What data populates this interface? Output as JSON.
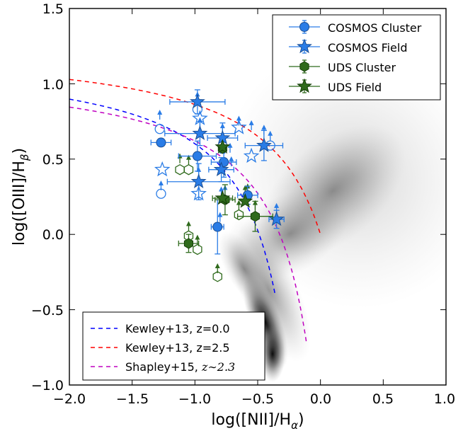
{
  "chart_data": {
    "type": "scatter",
    "xlabel": "log([NII]/H",
    "xlabel_sub": "α",
    "xlabel_close": ")",
    "ylabel": "log([OIII]/H",
    "ylabel_sub": "β",
    "ylabel_close": ")",
    "xlim": [
      -2.0,
      1.0
    ],
    "ylim": [
      -1.0,
      1.5
    ],
    "xticks": [
      -2.0,
      -1.5,
      -1.0,
      -0.5,
      0.0,
      0.5,
      1.0
    ],
    "xtick_labels": [
      "−2.0",
      "−1.5",
      "−1.0",
      "−0.5",
      "0.0",
      "0.5",
      "1.0"
    ],
    "yticks": [
      -1.0,
      -0.5,
      0.0,
      0.5,
      1.0,
      1.5
    ],
    "ytick_labels": [
      "−1.0",
      "−0.5",
      "0.0",
      "0.5",
      "1.0",
      "1.5"
    ],
    "grid": false,
    "colors": {
      "cosmos": "#2a7ce6",
      "cosmos_edge": "#1a4e94",
      "uds": "#2f6a1c",
      "uds_edge": "#143d08",
      "kewley0": "#0000ff",
      "kewley25": "#ff0000",
      "shapley": "#c000c0"
    },
    "series": [
      {
        "name": "COSMOS Cluster",
        "marker": "circle",
        "color": "cosmos",
        "points": [
          {
            "x": -1.27,
            "y": 0.61,
            "xerr": 0.08,
            "yerr": 0.0,
            "filled": true
          },
          {
            "x": -0.98,
            "y": 0.52,
            "xerr": 0.15,
            "yerr": 0.1,
            "filled": true
          },
          {
            "x": -0.82,
            "y": 0.05,
            "xerr": 0.05,
            "yerr": 0.18,
            "filled": true
          },
          {
            "x": -0.77,
            "y": 0.48,
            "xerr": 0.1,
            "yerr": 0.1,
            "filled": true
          },
          {
            "x": -0.58,
            "y": 0.26,
            "xerr": 0.08,
            "yerr": 0.06,
            "filled": true
          },
          {
            "x": -1.28,
            "y": 0.7,
            "xerr": 0.0,
            "yerr": 0.0,
            "filled": false
          },
          {
            "x": -1.27,
            "y": 0.27,
            "xerr": 0.0,
            "yerr": 0.0,
            "filled": false
          },
          {
            "x": -0.4,
            "y": 0.59,
            "xerr": 0.0,
            "yerr": 0.0,
            "filled": false
          },
          {
            "x": -0.98,
            "y": 0.83,
            "xerr": 0.0,
            "yerr": 0.0,
            "filled": false
          }
        ]
      },
      {
        "name": "COSMOS Field",
        "marker": "star",
        "color": "cosmos",
        "points": [
          {
            "x": -0.98,
            "y": 0.88,
            "xerr": 0.22,
            "yerr": 0.08,
            "filled": true
          },
          {
            "x": -0.96,
            "y": 0.67,
            "xerr": 0.28,
            "yerr": 0.08,
            "filled": true
          },
          {
            "x": -0.97,
            "y": 0.35,
            "xerr": 0.25,
            "yerr": 0.12,
            "filled": true
          },
          {
            "x": -0.78,
            "y": 0.64,
            "xerr": 0.12,
            "yerr": 0.1,
            "filled": true
          },
          {
            "x": -0.79,
            "y": 0.43,
            "xerr": 0.1,
            "yerr": 0.08,
            "filled": true
          },
          {
            "x": -0.45,
            "y": 0.59,
            "xerr": 0.15,
            "yerr": 0.1,
            "filled": true
          },
          {
            "x": -0.35,
            "y": 0.1,
            "xerr": 0.06,
            "yerr": 0.06,
            "filled": true
          },
          {
            "x": -0.65,
            "y": 0.71,
            "xerr": 0.0,
            "yerr": 0.0,
            "filled": false
          },
          {
            "x": -0.96,
            "y": 0.77,
            "xerr": 0.0,
            "yerr": 0.0,
            "filled": false
          },
          {
            "x": -1.26,
            "y": 0.43,
            "xerr": 0.0,
            "yerr": 0.0,
            "filled": false
          },
          {
            "x": -0.97,
            "y": 0.27,
            "xerr": 0.0,
            "yerr": 0.0,
            "filled": false
          },
          {
            "x": -0.55,
            "y": 0.52,
            "xerr": 0.0,
            "yerr": 0.0,
            "filled": false
          }
        ]
      },
      {
        "name": "UDS Cluster",
        "marker": "hexagon",
        "color": "uds",
        "points": [
          {
            "x": -1.05,
            "y": -0.06,
            "xerr": 0.08,
            "yerr": 0.06,
            "filled": true
          },
          {
            "x": -0.76,
            "y": 0.23,
            "xerr": 0.08,
            "yerr": 0.1,
            "filled": true
          },
          {
            "x": -0.52,
            "y": 0.12,
            "xerr": 0.14,
            "yerr": 0.1,
            "filled": true
          },
          {
            "x": -0.78,
            "y": 0.57,
            "xerr": 0.0,
            "yerr": 0.0,
            "filled": true
          },
          {
            "x": -1.05,
            "y": -0.01,
            "xerr": 0.0,
            "yerr": 0.0,
            "filled": false
          },
          {
            "x": -0.98,
            "y": -0.1,
            "xerr": 0.0,
            "yerr": 0.0,
            "filled": false
          },
          {
            "x": -0.82,
            "y": -0.28,
            "xerr": 0.0,
            "yerr": 0.0,
            "filled": false
          },
          {
            "x": -1.12,
            "y": 0.43,
            "xerr": 0.0,
            "yerr": 0.0,
            "filled": false
          },
          {
            "x": -1.05,
            "y": 0.43,
            "xerr": 0.0,
            "yerr": 0.0,
            "filled": false
          },
          {
            "x": -0.65,
            "y": 0.13,
            "xerr": 0.0,
            "yerr": 0.0,
            "filled": false
          }
        ]
      },
      {
        "name": "UDS Field",
        "marker": "star",
        "color": "uds",
        "points": [
          {
            "x": -0.78,
            "y": 0.58,
            "xerr": 0.0,
            "yerr": 0.0,
            "filled": true
          },
          {
            "x": -0.78,
            "y": 0.24,
            "xerr": 0.08,
            "yerr": 0.0,
            "filled": true
          },
          {
            "x": -0.6,
            "y": 0.22,
            "xerr": 0.0,
            "yerr": 0.0,
            "filled": true
          }
        ]
      }
    ],
    "upper_limit_arrows": [
      {
        "x": -1.28,
        "y": 0.8
      },
      {
        "x": -1.27,
        "y": 0.33
      },
      {
        "x": -0.98,
        "y": 0.92
      },
      {
        "x": -0.96,
        "y": 0.75
      },
      {
        "x": -0.97,
        "y": 0.42
      },
      {
        "x": -0.65,
        "y": 0.76
      },
      {
        "x": -0.55,
        "y": 0.73
      },
      {
        "x": -0.45,
        "y": 0.7
      },
      {
        "x": -0.4,
        "y": 0.66
      },
      {
        "x": -0.35,
        "y": 0.18
      },
      {
        "x": -0.78,
        "y": 0.71
      },
      {
        "x": -0.71,
        "y": 0.49
      },
      {
        "x": -0.79,
        "y": 0.29
      },
      {
        "x": -0.58,
        "y": 0.31
      },
      {
        "x": -0.8,
        "y": 0.12
      },
      {
        "x": -1.12,
        "y": 0.51
      },
      {
        "x": -1.05,
        "y": 0.5
      },
      {
        "x": -1.05,
        "y": 0.06
      },
      {
        "x": -0.98,
        "y": -0.03
      },
      {
        "x": -0.82,
        "y": -0.22
      },
      {
        "x": -0.6,
        "y": 0.3
      },
      {
        "x": -0.65,
        "y": 0.2
      },
      {
        "x": -0.76,
        "y": 0.3
      },
      {
        "x": -0.52,
        "y": 0.2
      },
      {
        "x": -0.72,
        "y": 0.58
      }
    ],
    "lines": [
      {
        "name": "Kewley+13, z=0.0",
        "color": "kewley0",
        "dash": true
      },
      {
        "name": "Kewley+13, z=2.5",
        "color": "kewley25",
        "dash": true
      },
      {
        "name": "Shapley+15, ",
        "name_math": "z∼2.3",
        "color": "shapley",
        "dash": true
      }
    ],
    "legend_top": {
      "placement": "top-right",
      "entries": [
        "COSMOS Cluster",
        "COSMOS Field",
        "UDS Cluster",
        "UDS Field"
      ]
    },
    "legend_bottom": {
      "placement": "bottom-left",
      "entries": [
        "Kewley+13, z=0.0",
        "Kewley+13, z=2.5",
        "Shapley+15, "
      ]
    }
  }
}
